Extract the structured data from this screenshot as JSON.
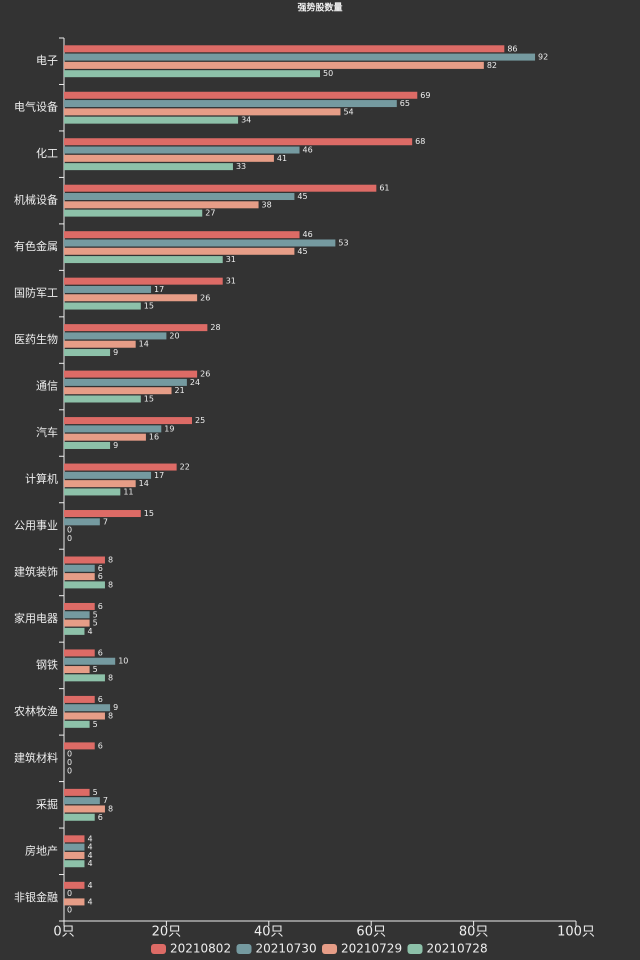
{
  "chart_data": {
    "type": "hbar",
    "title": "强势股数量",
    "categories": [
      "电子",
      "电气设备",
      "化工",
      "机械设备",
      "有色金属",
      "国防军工",
      "医药生物",
      "通信",
      "汽车",
      "计算机",
      "公用事业",
      "建筑装饰",
      "家用电器",
      "钢铁",
      "农林牧渔",
      "建筑材料",
      "采掘",
      "房地产",
      "非银金融"
    ],
    "series": [
      {
        "name": "20210802",
        "color": "#dd6b66",
        "values": [
          86,
          69,
          68,
          61,
          46,
          31,
          28,
          26,
          25,
          22,
          15,
          8,
          6,
          6,
          6,
          6,
          5,
          4,
          4
        ]
      },
      {
        "name": "20210730",
        "color": "#759aa0",
        "values": [
          92,
          65,
          46,
          45,
          53,
          17,
          20,
          24,
          19,
          17,
          7,
          6,
          5,
          10,
          9,
          0,
          7,
          4,
          0
        ]
      },
      {
        "name": "20210729",
        "color": "#e69d87",
        "values": [
          82,
          54,
          41,
          38,
          45,
          26,
          14,
          21,
          16,
          14,
          0,
          6,
          5,
          5,
          8,
          0,
          8,
          4,
          4
        ]
      },
      {
        "name": "20210728",
        "color": "#8dc1a9",
        "values": [
          50,
          34,
          33,
          27,
          31,
          15,
          9,
          15,
          9,
          11,
          0,
          8,
          4,
          8,
          5,
          0,
          6,
          4,
          0
        ]
      }
    ],
    "xlim": [
      0,
      100
    ],
    "xticks": [
      {
        "value": 0,
        "label": "0只"
      },
      {
        "value": 20,
        "label": "20只"
      },
      {
        "value": 40,
        "label": "40只"
      },
      {
        "value": 60,
        "label": "60只"
      },
      {
        "value": 80,
        "label": "80只"
      },
      {
        "value": 100,
        "label": "100只"
      }
    ]
  }
}
